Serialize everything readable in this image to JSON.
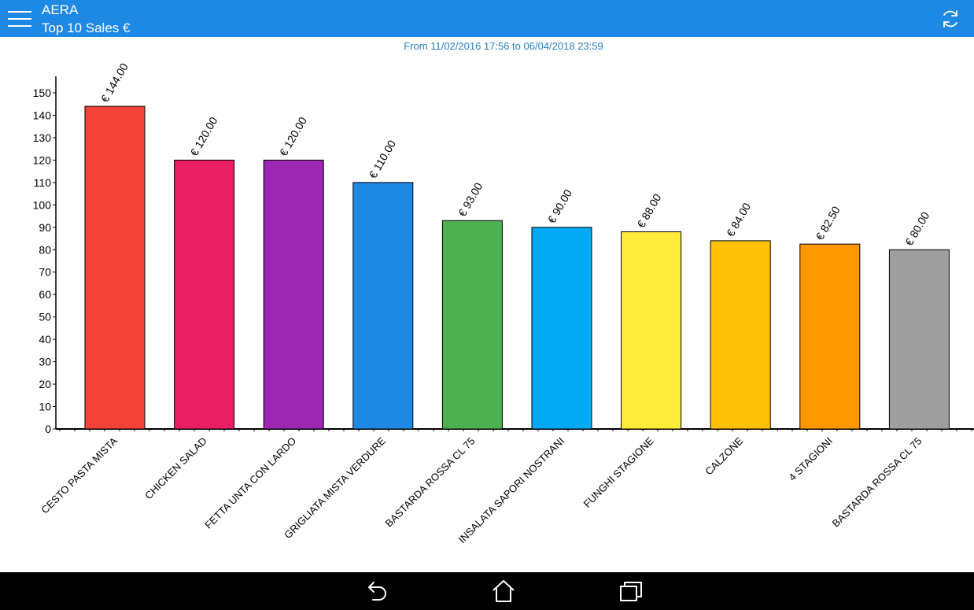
{
  "app": {
    "name": "AERA",
    "screen_title": "Top 10 Sales €"
  },
  "date_range": "From 11/02/2016 17:56 to 06/04/2018 23:59",
  "colors": {
    "app_bar": "#1e88e5",
    "date_range_text": "#2a7fc0",
    "nav_bar": "#000000"
  },
  "icons": {
    "menu": "hamburger-menu-icon",
    "refresh": "refresh-icon",
    "back": "back-icon",
    "home": "home-icon",
    "recents": "recent-apps-icon"
  },
  "chart_data": {
    "type": "bar",
    "categories": [
      "CESTO PASTA MISTA",
      "CHICKEN SALAD",
      "FETTA UNTA CON LARDO",
      "GRIGLIATA MISTA VERDURE",
      "BASTARDA ROSSA CL 75",
      "INSALATA SAPORI NOSTRANI",
      "FUNGHI STAGIONE",
      "CALZONE",
      "4 STAGIONI",
      "BASTARDA ROSSA CL 75"
    ],
    "values": [
      144,
      120,
      120,
      110,
      93,
      90,
      88,
      84,
      82.5,
      80
    ],
    "value_labels": [
      "€ 144.00",
      "€ 120.00",
      "€ 120.00",
      "€ 110.00",
      "€ 93.00",
      "€ 90.00",
      "€ 88.00",
      "€ 84.00",
      "€ 82.50",
      "€ 80.00"
    ],
    "colors": [
      "#f44336",
      "#e91e63",
      "#9c27b0",
      "#1e88e5",
      "#4caf50",
      "#03a9f4",
      "#ffeb3b",
      "#ffc107",
      "#ff9800",
      "#9e9e9e"
    ],
    "yticks": [
      0,
      10,
      20,
      30,
      40,
      50,
      60,
      70,
      80,
      90,
      100,
      110,
      120,
      130,
      140,
      150
    ],
    "ylim": [
      0,
      150
    ],
    "grid": false,
    "legend": "none",
    "title": "",
    "xlabel": "",
    "ylabel": ""
  }
}
